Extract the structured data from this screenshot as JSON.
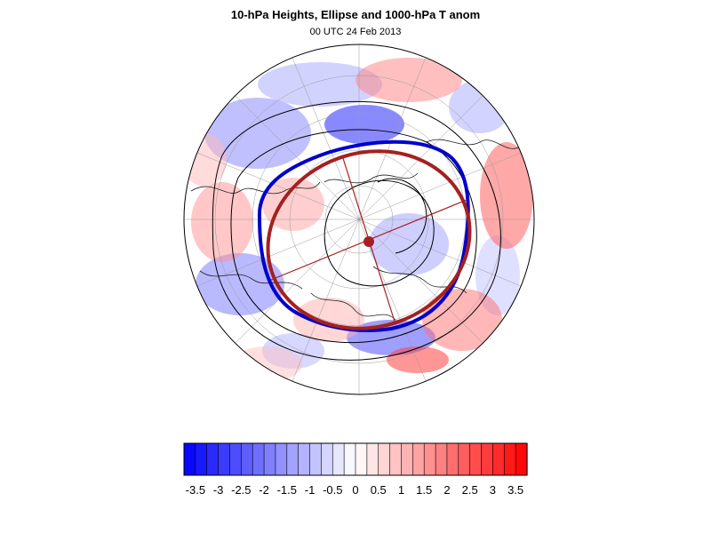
{
  "title": "10-hPa Heights, Ellipse and 1000-hPa T anom",
  "subtitle": "00 UTC 24 Feb 2013",
  "colors": {
    "ellipse": "#a52020",
    "vortex_edge": "#0000cc",
    "height_contours": "#000000",
    "negative": "#0000ff",
    "positive": "#ff0000"
  },
  "colorbar": {
    "min": -3.75,
    "max": 3.75,
    "step": 0.25,
    "tick_labels": [
      "-3.5",
      "-3",
      "-2.5",
      "-2",
      "-1.5",
      "-1",
      "-0.5",
      "0",
      "0.5",
      "1",
      "1.5",
      "2",
      "2.5",
      "3",
      "3.5"
    ],
    "tick_values": [
      -3.5,
      -3,
      -2.5,
      -2,
      -1.5,
      -1,
      -0.5,
      0,
      0.5,
      1,
      1.5,
      2,
      2.5,
      3,
      3.5
    ]
  }
}
